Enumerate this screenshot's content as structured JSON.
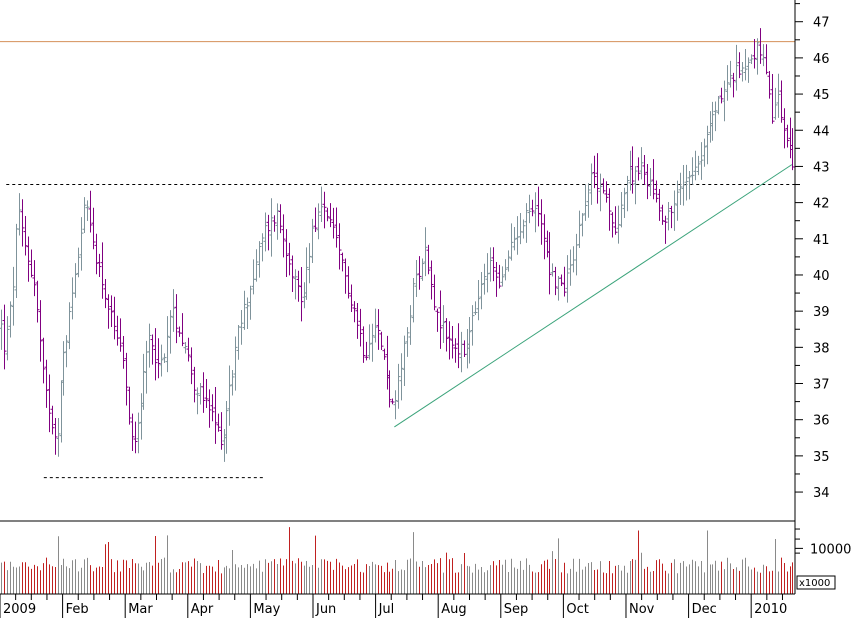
{
  "chart_data": {
    "type": "bar",
    "subtype": "ohlc-price-with-volume",
    "title": "",
    "xlabel": "",
    "ylabel": "",
    "price_axis": {
      "ylim": [
        33.2,
        47.6
      ],
      "ticks": [
        "34",
        "35",
        "36",
        "37",
        "38",
        "39",
        "40",
        "41",
        "42",
        "43",
        "44",
        "45",
        "46",
        "47"
      ],
      "position": "right"
    },
    "volume_axis": {
      "ticks": [
        "10000"
      ],
      "unit": "x1000",
      "ylim": [
        0,
        16000
      ]
    },
    "x_labels": [
      "2009",
      "Feb",
      "Mar",
      "Apr",
      "May",
      "Jun",
      "Jul",
      "Aug",
      "Sep",
      "Oct",
      "Nov",
      "Dec",
      "2010"
    ],
    "x_range_months": [
      0,
      12.7
    ],
    "bar_colors": {
      "up": "#7f939b",
      "down": "#800080"
    },
    "volume_colors": {
      "up": "#8a8a8a",
      "down": "#c02020"
    },
    "reference_lines": [
      {
        "kind": "resistance",
        "style": "solid",
        "color": "#d4905a",
        "y": 46.45,
        "x_start_month": 0,
        "x_end_month": 12.7
      },
      {
        "kind": "horizontal",
        "style": "dashed",
        "color": "#000000",
        "y": 42.5,
        "x_start_month": 0.1,
        "x_end_month": 12.7
      },
      {
        "kind": "support",
        "style": "dashed",
        "color": "#000000",
        "y": 34.4,
        "x_start_month": 0.7,
        "x_end_month": 4.2
      },
      {
        "kind": "trendline",
        "style": "solid",
        "color": "#3aa37a",
        "from": {
          "month": 6.3,
          "price": 35.8
        },
        "to": {
          "month": 12.65,
          "price": 43.05
        }
      }
    ],
    "price_anchors": [
      [
        0.0,
        38.8
      ],
      [
        0.08,
        37.9
      ],
      [
        0.2,
        39.5
      ],
      [
        0.28,
        41.8
      ],
      [
        0.38,
        40.9
      ],
      [
        0.55,
        39.7
      ],
      [
        0.7,
        36.9
      ],
      [
        0.9,
        35.4
      ],
      [
        1.0,
        37.6
      ],
      [
        1.15,
        39.4
      ],
      [
        1.35,
        42.0
      ],
      [
        1.5,
        40.8
      ],
      [
        1.75,
        38.9
      ],
      [
        1.95,
        37.6
      ],
      [
        2.12,
        35.3
      ],
      [
        2.25,
        36.6
      ],
      [
        2.4,
        38.4
      ],
      [
        2.55,
        37.3
      ],
      [
        2.75,
        39.0
      ],
      [
        2.95,
        38.1
      ],
      [
        3.1,
        37.0
      ],
      [
        3.35,
        36.2
      ],
      [
        3.55,
        35.4
      ],
      [
        3.65,
        36.7
      ],
      [
        3.82,
        38.5
      ],
      [
        4.02,
        39.8
      ],
      [
        4.22,
        41.2
      ],
      [
        4.42,
        41.7
      ],
      [
        4.62,
        40.4
      ],
      [
        4.82,
        39.2
      ],
      [
        5.0,
        41.4
      ],
      [
        5.2,
        41.9
      ],
      [
        5.42,
        40.5
      ],
      [
        5.62,
        39.3
      ],
      [
        5.82,
        37.8
      ],
      [
        5.98,
        38.8
      ],
      [
        6.12,
        37.7
      ],
      [
        6.28,
        36.2
      ],
      [
        6.45,
        37.8
      ],
      [
        6.62,
        39.8
      ],
      [
        6.8,
        40.7
      ],
      [
        6.98,
        38.8
      ],
      [
        7.2,
        38.1
      ],
      [
        7.42,
        37.8
      ],
      [
        7.62,
        39.2
      ],
      [
        7.82,
        40.3
      ],
      [
        8.02,
        39.8
      ],
      [
        8.2,
        41.0
      ],
      [
        8.42,
        41.8
      ],
      [
        8.62,
        41.7
      ],
      [
        8.8,
        40.0
      ],
      [
        9.0,
        39.6
      ],
      [
        9.2,
        40.9
      ],
      [
        9.4,
        42.6
      ],
      [
        9.6,
        42.6
      ],
      [
        9.8,
        41.1
      ],
      [
        10.0,
        42.6
      ],
      [
        10.2,
        43.0
      ],
      [
        10.4,
        42.5
      ],
      [
        10.62,
        41.5
      ],
      [
        10.82,
        42.2
      ],
      [
        11.02,
        42.9
      ],
      [
        11.2,
        43.3
      ],
      [
        11.42,
        44.6
      ],
      [
        11.62,
        45.3
      ],
      [
        11.82,
        45.7
      ],
      [
        12.02,
        46.1
      ],
      [
        12.12,
        46.3
      ],
      [
        12.22,
        45.6
      ],
      [
        12.32,
        44.3
      ],
      [
        12.42,
        44.9
      ],
      [
        12.52,
        44.0
      ],
      [
        12.62,
        43.2
      ]
    ]
  }
}
